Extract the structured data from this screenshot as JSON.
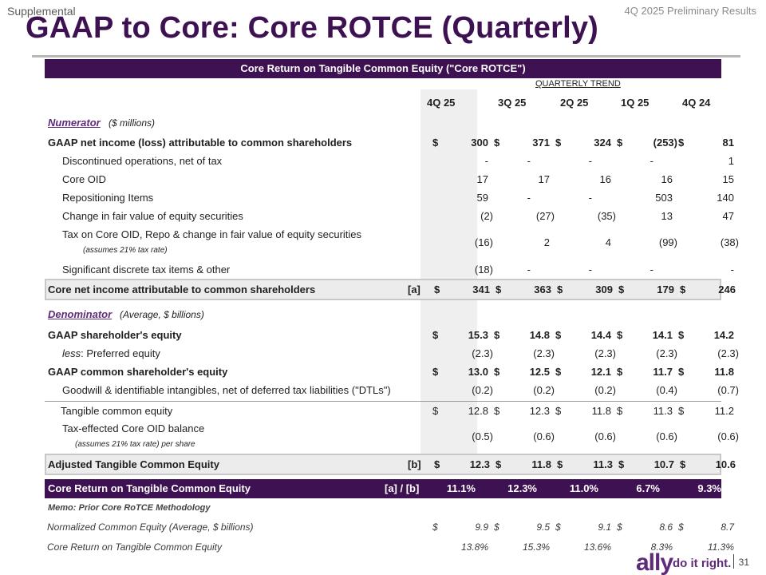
{
  "header": {
    "supplemental": "Supplemental",
    "results": "4Q 2025 Preliminary Results",
    "title": "GAAP to Core: Core ROTCE (Quarterly)"
  },
  "table": {
    "banner": "Core Return on Tangible Common Equity (\"Core ROTCE\")",
    "trend_label": "QUARTERLY TREND",
    "columns": [
      "4Q 25",
      "3Q 25",
      "2Q 25",
      "1Q 25",
      "4Q 24"
    ],
    "numerator": {
      "label": "Numerator",
      "note": "($ millions)"
    },
    "denominator": {
      "label": "Denominator",
      "note": "(Average, $ billions)"
    },
    "numerator_rows": [
      {
        "label": "GAAP net income (loss) attributable to common shareholders",
        "values": [
          "300",
          "371",
          "324",
          "(253)",
          "81"
        ]
      },
      {
        "label": "Discontinued operations, net of tax",
        "values": [
          "-",
          "-",
          "-",
          "-",
          "1"
        ]
      },
      {
        "label": "Core OID",
        "values": [
          "17",
          "17",
          "16",
          "16",
          "15"
        ]
      },
      {
        "label": "Repositioning Items",
        "values": [
          "59",
          "-",
          "-",
          "503",
          "140"
        ]
      },
      {
        "label": "Change in fair value of equity securities",
        "values": [
          "(2)",
          "(27)",
          "(35)",
          "13",
          "47"
        ]
      },
      {
        "label": "Tax on Core OID, Repo & change in fair value of equity securities",
        "note": "(assumes 21% tax rate)",
        "values": [
          "(16)",
          "2",
          "4",
          "(99)",
          "(38)"
        ]
      },
      {
        "label": "Significant discrete tax items & other",
        "values": [
          "(18)",
          "-",
          "-",
          "-",
          "-"
        ]
      }
    ],
    "core_net_income": {
      "label": "Core net income attributable to common shareholders",
      "ref": "[a]",
      "values": [
        "341",
        "363",
        "309",
        "179",
        "246"
      ]
    },
    "denominator_rows": [
      {
        "label": "GAAP shareholder's equity",
        "values": [
          "15.3",
          "14.8",
          "14.4",
          "14.1",
          "14.2"
        ]
      },
      {
        "label_em": "less",
        "label": ": Preferred equity",
        "values": [
          "(2.3)",
          "(2.3)",
          "(2.3)",
          "(2.3)",
          "(2.3)"
        ]
      },
      {
        "label": "GAAP common shareholder's equity",
        "values": [
          "13.0",
          "12.5",
          "12.1",
          "11.7",
          "11.8"
        ]
      },
      {
        "label": "Goodwill & identifiable intangibles, net of deferred tax liabilities (\"DTLs\")",
        "values": [
          "(0.2)",
          "(0.2)",
          "(0.2)",
          "(0.4)",
          "(0.7)"
        ]
      },
      {
        "label": "Tangible common equity",
        "values": [
          "12.8",
          "12.3",
          "11.8",
          "11.3",
          "11.2"
        ]
      },
      {
        "label": "Tax-effected Core OID balance",
        "note": "(assumes 21% tax rate) per share",
        "values": [
          "(0.5)",
          "(0.6)",
          "(0.6)",
          "(0.6)",
          "(0.6)"
        ]
      }
    ],
    "adjusted_tce": {
      "label": "Adjusted Tangible Common Equity",
      "ref": "[b]",
      "values": [
        "12.3",
        "11.8",
        "11.3",
        "10.7",
        "10.6"
      ]
    },
    "core_rotce": {
      "label": "Core Return on Tangible Common Equity",
      "ref": "[a] / [b]",
      "values": [
        "11.1%",
        "12.3%",
        "11.0%",
        "6.7%",
        "9.3%"
      ]
    },
    "memo": {
      "title": "Memo: Prior Core RoTCE Methodology",
      "rows": [
        {
          "label": "Normalized Common Equity (Average, $ billions)",
          "values": [
            "9.9",
            "9.5",
            "9.1",
            "8.6",
            "8.7"
          ]
        },
        {
          "label": "Core Return on Tangible Common Equity",
          "values": [
            "13.8%",
            "15.3%",
            "13.6%",
            "8.3%",
            "11.3%"
          ]
        }
      ]
    },
    "dollar": "$"
  },
  "footer": {
    "logo": "ally",
    "tagline": "do it right.",
    "page": "31"
  },
  "colors": {
    "brand_purple": "#3d1152",
    "accent_purple": "#5e2a7a"
  }
}
